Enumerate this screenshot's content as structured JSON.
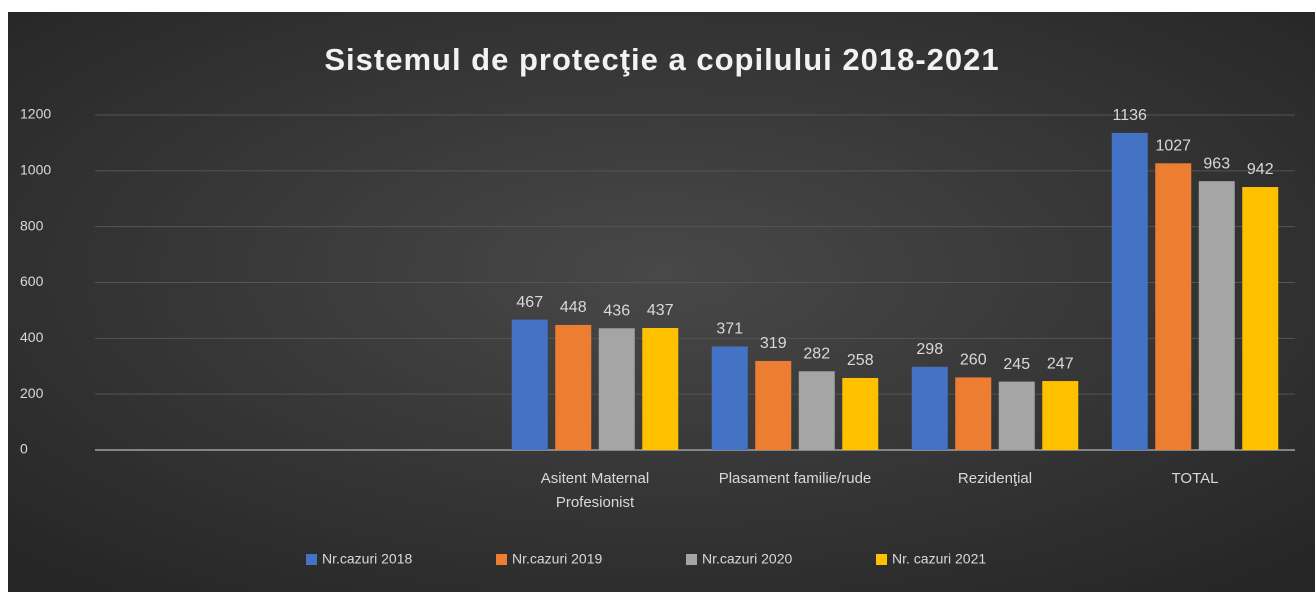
{
  "chart_data": {
    "type": "bar",
    "title": "Sistemul de protecţie a copilului 2018-2021",
    "categories": [
      null,
      null,
      "Asitent Maternal Profesionist",
      "Plasament familie/rude",
      "Rezidenţial",
      "TOTAL"
    ],
    "series": [
      {
        "name": "Nr.cazuri 2018",
        "color": "#4472c4",
        "values": [
          null,
          null,
          467,
          371,
          298,
          1136
        ]
      },
      {
        "name": "Nr.cazuri 2019",
        "color": "#ed7d31",
        "values": [
          null,
          null,
          448,
          319,
          260,
          1027
        ]
      },
      {
        "name": "Nr.cazuri 2020",
        "color": "#a5a5a5",
        "values": [
          null,
          null,
          436,
          282,
          245,
          963
        ]
      },
      {
        "name": "Nr. cazuri 2021",
        "color": "#ffc000",
        "values": [
          null,
          null,
          437,
          258,
          247,
          942
        ]
      }
    ],
    "ylim": [
      0,
      1200
    ],
    "yticks": [
      0,
      200,
      400,
      600,
      800,
      1000,
      1200
    ],
    "grid": true,
    "legend": "bottom"
  }
}
